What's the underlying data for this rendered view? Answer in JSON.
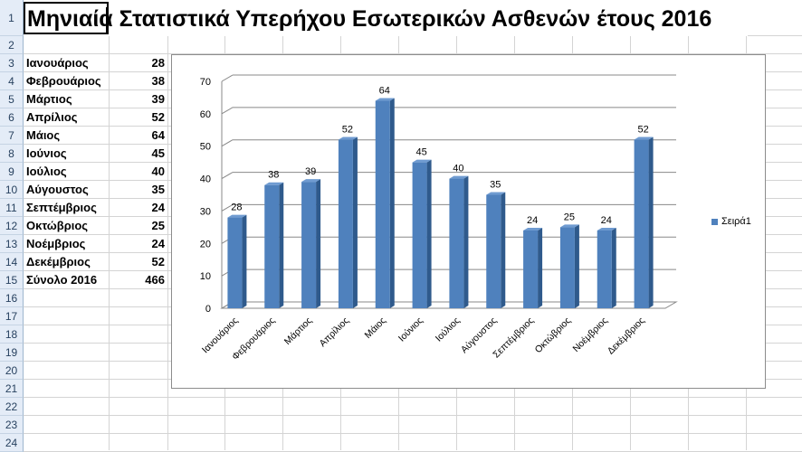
{
  "title": "Μηνιαία Στατιστικά Υπερήχου Εσωτερικών Ασθενών έτους 2016",
  "row_numbers": [
    "1",
    "2",
    "3",
    "4",
    "5",
    "6",
    "7",
    "8",
    "9",
    "10",
    "11",
    "12",
    "13",
    "14",
    "15",
    "16",
    "17",
    "18",
    "19",
    "20",
    "21",
    "22",
    "23",
    "24"
  ],
  "table": [
    {
      "month": "Ιανουάριος",
      "value": "28"
    },
    {
      "month": "Φεβρουάριος",
      "value": "38"
    },
    {
      "month": "Μάρτιος",
      "value": "39"
    },
    {
      "month": "Απρίλιος",
      "value": "52"
    },
    {
      "month": "Μάιος",
      "value": "64"
    },
    {
      "month": "Ιούνιος",
      "value": "45"
    },
    {
      "month": "Ιούλιος",
      "value": "40"
    },
    {
      "month": "Αύγουστος",
      "value": "35"
    },
    {
      "month": "Σεπτέμβριος",
      "value": "24"
    },
    {
      "month": "Οκτώβριος",
      "value": "25"
    },
    {
      "month": "Νοέμβριος",
      "value": "24"
    },
    {
      "month": "Δεκέμβριος",
      "value": "52"
    },
    {
      "month": "Σύνολο 2016",
      "value": "466"
    }
  ],
  "chart_data": {
    "type": "bar",
    "categories": [
      "Ιανουάριος",
      "Φεβρουάριος",
      "Μάρτιος",
      "Απρίλιος",
      "Μάιος",
      "Ιούνιος",
      "Ιούλιος",
      "Αύγουστος",
      "Σεπτέμβριος",
      "Οκτώβριος",
      "Νοέμβριος",
      "Δεκέμβριος"
    ],
    "series": [
      {
        "name": "Σειρά1",
        "values": [
          28,
          38,
          39,
          52,
          64,
          45,
          40,
          35,
          24,
          25,
          24,
          52
        ]
      }
    ],
    "ylim": [
      0,
      70
    ],
    "yticks": [
      0,
      10,
      20,
      30,
      40,
      50,
      60,
      70
    ],
    "grid": true,
    "legend": "right",
    "bar_color": "#4f81bd"
  }
}
